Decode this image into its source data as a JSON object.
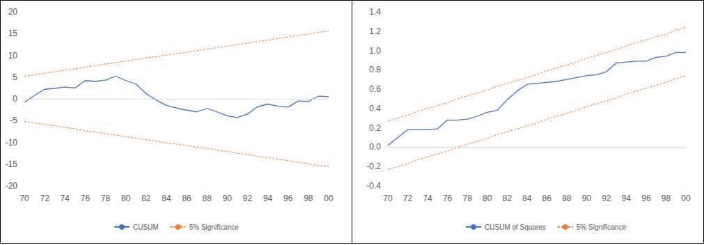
{
  "chart_data": [
    {
      "type": "line",
      "categories": [
        "70",
        null,
        "72",
        null,
        "74",
        null,
        "76",
        null,
        "78",
        null,
        "80",
        null,
        "82",
        null,
        "84",
        null,
        "86",
        null,
        "88",
        null,
        "90",
        null,
        "92",
        null,
        "94",
        null,
        "96",
        null,
        "98",
        null,
        "00"
      ],
      "series": [
        {
          "name": "CUSUM",
          "color": "#4472c4",
          "line_style": "solid",
          "values": [
            -0.8,
            0.8,
            2.2,
            2.4,
            2.7,
            2.5,
            4.2,
            4.0,
            4.3,
            5.2,
            4.2,
            3.4,
            1.2,
            -0.3,
            -1.5,
            -2.1,
            -2.6,
            -3.0,
            -2.2,
            -3.0,
            -3.9,
            -4.3,
            -3.5,
            -1.8,
            -1.2,
            -1.7,
            -1.9,
            -0.5,
            -0.6,
            0.6,
            0.5
          ]
        },
        {
          "name": "5% Significance",
          "color": "#ed7d31",
          "line_style": "dashed",
          "values": [
            5.2,
            5.5,
            5.9,
            6.2,
            6.6,
            6.9,
            7.3,
            7.6,
            8.0,
            8.3,
            8.7,
            9.0,
            9.4,
            9.7,
            10.1,
            10.4,
            10.7,
            11.1,
            11.4,
            11.8,
            12.1,
            12.5,
            12.8,
            13.2,
            13.5,
            13.9,
            14.2,
            14.6,
            14.9,
            15.3,
            15.6
          ]
        },
        {
          "name": "5% Significance",
          "color": "#ed7d31",
          "line_style": "dashed",
          "values": [
            -5.2,
            -5.5,
            -5.9,
            -6.2,
            -6.6,
            -6.9,
            -7.3,
            -7.6,
            -8.0,
            -8.3,
            -8.7,
            -9.0,
            -9.4,
            -9.7,
            -10.1,
            -10.4,
            -10.7,
            -11.1,
            -11.4,
            -11.8,
            -12.1,
            -12.5,
            -12.8,
            -13.2,
            -13.5,
            -13.9,
            -14.2,
            -14.6,
            -14.9,
            -15.3,
            -15.6
          ]
        }
      ],
      "ylim": [
        -20,
        20
      ],
      "yticks": [
        -20,
        -15,
        -10,
        -5,
        0,
        5,
        10,
        15,
        20
      ],
      "grid": false,
      "legend": "bottom"
    },
    {
      "type": "line",
      "categories": [
        "70",
        null,
        "72",
        null,
        "74",
        null,
        "76",
        null,
        "78",
        null,
        "80",
        null,
        "82",
        null,
        "84",
        null,
        "86",
        null,
        "88",
        null,
        "90",
        null,
        "92",
        null,
        "94",
        null,
        "96",
        null,
        "98",
        null,
        "00"
      ],
      "series": [
        {
          "name": "CUSUM of Squares",
          "color": "#4472c4",
          "line_style": "solid",
          "values": [
            0.02,
            0.1,
            0.18,
            0.18,
            0.18,
            0.19,
            0.28,
            0.28,
            0.29,
            0.32,
            0.36,
            0.38,
            0.49,
            0.58,
            0.65,
            0.66,
            0.67,
            0.68,
            0.7,
            0.72,
            0.74,
            0.75,
            0.78,
            0.87,
            0.88,
            0.89,
            0.89,
            0.93,
            0.94,
            0.98,
            0.98
          ]
        },
        {
          "name": "5% Significance",
          "color": "#ed7d31",
          "line_style": "dashed",
          "values": [
            0.27,
            0.3,
            0.33,
            0.37,
            0.4,
            0.43,
            0.46,
            0.5,
            0.53,
            0.56,
            0.59,
            0.63,
            0.66,
            0.69,
            0.72,
            0.75,
            0.79,
            0.82,
            0.85,
            0.88,
            0.92,
            0.95,
            0.98,
            1.01,
            1.05,
            1.08,
            1.11,
            1.14,
            1.17,
            1.21,
            1.24
          ]
        },
        {
          "name": "5% Significance",
          "color": "#ed7d31",
          "line_style": "dashed",
          "values": [
            -0.23,
            -0.2,
            -0.17,
            -0.13,
            -0.1,
            -0.07,
            -0.04,
            0.0,
            0.03,
            0.06,
            0.09,
            0.13,
            0.16,
            0.19,
            0.22,
            0.25,
            0.29,
            0.32,
            0.35,
            0.38,
            0.42,
            0.45,
            0.48,
            0.51,
            0.55,
            0.58,
            0.61,
            0.64,
            0.67,
            0.71,
            0.74
          ]
        }
      ],
      "ylim": [
        -0.4,
        1.4
      ],
      "yticks": [
        -0.4,
        -0.2,
        {
          "value": 0,
          "label": "0.0"
        },
        0.2,
        0.4,
        0.6,
        0.8,
        {
          "value": 1,
          "label": "1.0"
        },
        1.2,
        1.4
      ],
      "grid": false,
      "legend": "bottom"
    }
  ]
}
